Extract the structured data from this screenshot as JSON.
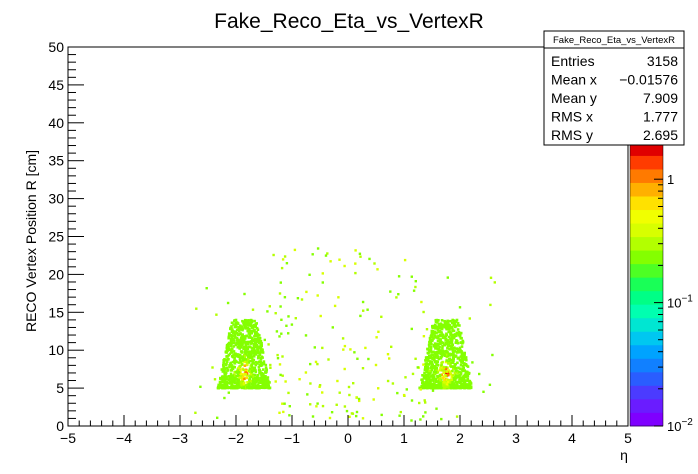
{
  "chart_data": {
    "type": "heatmap",
    "title": "Fake_Reco_Eta_vs_VertexR",
    "xlabel": "η",
    "ylabel": "RECO Vertex Position R [cm]",
    "xlim": [
      -5,
      5
    ],
    "ylim": [
      0,
      50
    ],
    "x_ticks": [
      "−5",
      "−4",
      "−3",
      "−2",
      "−1",
      "0",
      "1",
      "2",
      "3",
      "4",
      "5"
    ],
    "y_ticks": [
      "0",
      "5",
      "10",
      "15",
      "20",
      "25",
      "30",
      "35",
      "40",
      "45",
      "50"
    ],
    "z_scale": "log",
    "z_range": [
      0.01,
      2
    ],
    "z_ticks": [
      {
        "value": 0.01,
        "base": "10",
        "exp": "−2"
      },
      {
        "value": 0.1,
        "base": "10",
        "exp": "−1"
      },
      {
        "value": 1,
        "base": "1",
        "exp": ""
      }
    ],
    "clusters": [
      {
        "eta_center": -1.85,
        "eta_half_width": 0.45,
        "r_min": 5,
        "r_peak": 7,
        "r_top": 14
      },
      {
        "eta_center": 1.75,
        "eta_half_width": 0.45,
        "r_min": 5,
        "r_peak": 7,
        "r_top": 14
      }
    ],
    "stats_box": {
      "title": "Fake_Reco_Eta_vs_VertexR",
      "rows": [
        {
          "label": "Entries",
          "value": "3158"
        },
        {
          "label": "Mean x",
          "value": "−0.01576"
        },
        {
          "label": "Mean y",
          "value": "7.909"
        },
        {
          "label": "RMS x",
          "value": "1.777"
        },
        {
          "label": "RMS y",
          "value": "2.695"
        }
      ]
    },
    "palette": [
      "#7f00ff",
      "#6a1cff",
      "#4b3bff",
      "#2a5dff",
      "#1180ff",
      "#00a3ff",
      "#00c7f0",
      "#00e6d2",
      "#00ffb0",
      "#00ff86",
      "#19ff57",
      "#4dff24",
      "#84ff00",
      "#b3ff00",
      "#d8ff00",
      "#f1ff00",
      "#ffe100",
      "#ffb000",
      "#ff7a00",
      "#ff3c00",
      "#e00000"
    ]
  }
}
